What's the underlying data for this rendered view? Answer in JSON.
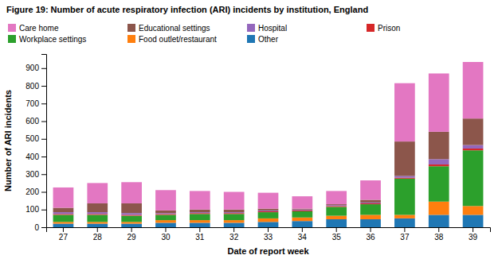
{
  "chart_data": {
    "type": "bar",
    "stacked": true,
    "title": "Figure 19: Number of acute respiratory infection (ARI) incidents by institution, England",
    "xlabel": "Date of report week",
    "ylabel": "Number of ARI incidents",
    "categories": [
      27,
      28,
      29,
      30,
      31,
      32,
      33,
      34,
      35,
      36,
      37,
      38,
      39
    ],
    "series": [
      {
        "name": "Other",
        "values": [
          20,
          20,
          20,
          25,
          25,
          25,
          30,
          35,
          45,
          45,
          50,
          70,
          70
        ]
      },
      {
        "name": "Food outlet/restaurant",
        "values": [
          10,
          10,
          10,
          15,
          15,
          15,
          20,
          20,
          20,
          25,
          20,
          75,
          50
        ]
      },
      {
        "name": "Workplace settings",
        "values": [
          40,
          40,
          35,
          30,
          35,
          35,
          35,
          35,
          50,
          60,
          205,
          200,
          315
        ]
      },
      {
        "name": "Prison",
        "values": [
          5,
          5,
          5,
          5,
          5,
          5,
          5,
          5,
          5,
          5,
          5,
          10,
          10
        ]
      },
      {
        "name": "Hospital",
        "values": [
          10,
          10,
          10,
          5,
          5,
          5,
          5,
          5,
          5,
          5,
          10,
          30,
          20
        ]
      },
      {
        "name": "Educational settings",
        "values": [
          25,
          50,
          55,
          15,
          15,
          15,
          10,
          5,
          5,
          15,
          195,
          155,
          150
        ]
      },
      {
        "name": "Care home",
        "values": [
          115,
          115,
          120,
          115,
          105,
          100,
          90,
          70,
          75,
          110,
          330,
          330,
          320
        ]
      }
    ],
    "ylim": [
      0,
      980
    ],
    "yticks": [
      0,
      100,
      200,
      300,
      400,
      500,
      600,
      700,
      800,
      900
    ],
    "grid": false,
    "legend": "top"
  }
}
